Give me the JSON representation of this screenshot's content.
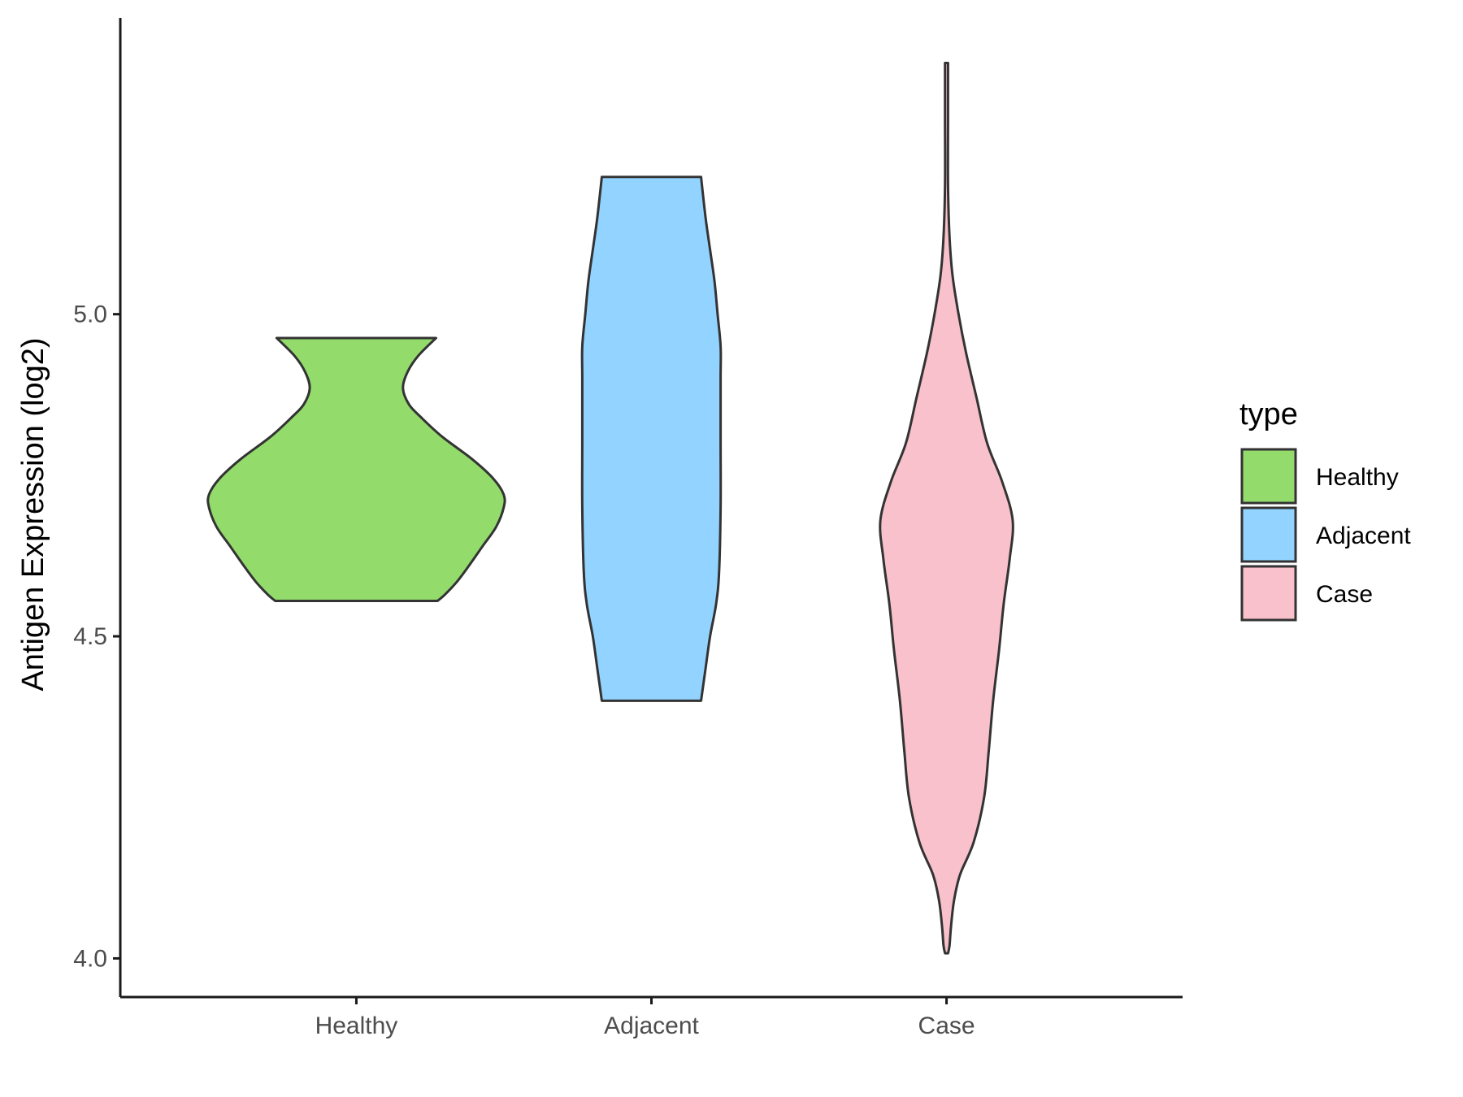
{
  "chart_data": {
    "type": "violin",
    "categories": [
      "Healthy",
      "Adjacent",
      "Case"
    ],
    "ylabel": "Antigen Expression (log2)",
    "xlabel": "",
    "ylim": [
      3.94,
      5.46
    ],
    "yticks": [
      "4.0",
      "4.5",
      "5.0"
    ],
    "grid": false,
    "legend": {
      "title": "type",
      "placement": "right",
      "entries": [
        "Healthy",
        "Adjacent",
        "Case"
      ]
    },
    "series": [
      {
        "name": "Healthy",
        "color": "#93DC6C",
        "min": 4.555,
        "max": 4.963,
        "density": [
          [
            4.555,
            0.54
          ],
          [
            4.565,
            0.59
          ],
          [
            4.585,
            0.67
          ],
          [
            4.61,
            0.75
          ],
          [
            4.64,
            0.84
          ],
          [
            4.67,
            0.93
          ],
          [
            4.7,
            0.98
          ],
          [
            4.72,
            0.98
          ],
          [
            4.745,
            0.91
          ],
          [
            4.775,
            0.77
          ],
          [
            4.81,
            0.57
          ],
          [
            4.84,
            0.43
          ],
          [
            4.86,
            0.35
          ],
          [
            4.885,
            0.31
          ],
          [
            4.91,
            0.34
          ],
          [
            4.935,
            0.41
          ],
          [
            4.963,
            0.53
          ]
        ]
      },
      {
        "name": "Adjacent",
        "color": "#92D3FF",
        "min": 4.4,
        "max": 5.213,
        "density": [
          [
            4.4,
            0.33
          ],
          [
            4.45,
            0.36
          ],
          [
            4.5,
            0.39
          ],
          [
            4.55,
            0.43
          ],
          [
            4.6,
            0.45
          ],
          [
            4.7,
            0.46
          ],
          [
            4.8,
            0.46
          ],
          [
            4.9,
            0.46
          ],
          [
            4.95,
            0.46
          ],
          [
            5.0,
            0.44
          ],
          [
            5.05,
            0.42
          ],
          [
            5.1,
            0.39
          ],
          [
            5.15,
            0.36
          ],
          [
            5.213,
            0.33
          ]
        ]
      },
      {
        "name": "Case",
        "color": "#F8C1CB",
        "min": 4.008,
        "max": 5.39,
        "density": [
          [
            4.008,
            0.01
          ],
          [
            4.02,
            0.02
          ],
          [
            4.05,
            0.03
          ],
          [
            4.09,
            0.05
          ],
          [
            4.13,
            0.09
          ],
          [
            4.18,
            0.18
          ],
          [
            4.25,
            0.25
          ],
          [
            4.32,
            0.28
          ],
          [
            4.4,
            0.31
          ],
          [
            4.48,
            0.35
          ],
          [
            4.55,
            0.38
          ],
          [
            4.62,
            0.42
          ],
          [
            4.68,
            0.44
          ],
          [
            4.74,
            0.37
          ],
          [
            4.8,
            0.27
          ],
          [
            4.87,
            0.2
          ],
          [
            4.94,
            0.13
          ],
          [
            5.0,
            0.08
          ],
          [
            5.06,
            0.04
          ],
          [
            5.12,
            0.02
          ],
          [
            5.2,
            0.01
          ],
          [
            5.3,
            0.01
          ],
          [
            5.39,
            0.01
          ]
        ]
      }
    ]
  }
}
